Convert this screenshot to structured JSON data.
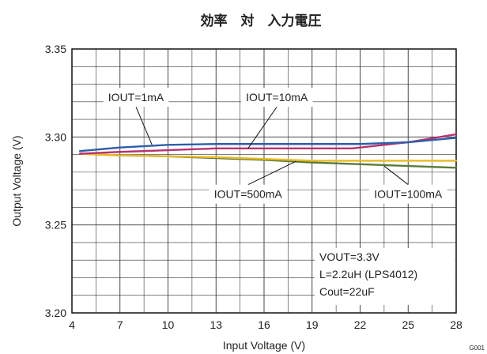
{
  "chart_data": {
    "type": "line",
    "title": "効率　対　入力電圧",
    "xlabel": "Input Voltage (V)",
    "ylabel": "Output Voltage (V)",
    "xlim": [
      4,
      28
    ],
    "ylim": [
      3.2,
      3.35
    ],
    "x_ticks": [
      "4",
      "7",
      "10",
      "13",
      "16",
      "19",
      "22",
      "25",
      "28"
    ],
    "y_ticks": [
      "3.20",
      "3.25",
      "3.30",
      "3.35"
    ],
    "grid": true,
    "series": [
      {
        "name": "IOUT=1mA",
        "color": "#2e5fa8",
        "x": [
          4.5,
          7,
          10,
          13,
          16,
          19,
          22,
          25,
          28
        ],
        "y": [
          3.292,
          3.294,
          3.2955,
          3.296,
          3.296,
          3.296,
          3.296,
          3.297,
          3.2995
        ]
      },
      {
        "name": "IOUT=10mA",
        "color": "#b8336f",
        "x": [
          4.5,
          7,
          10,
          13,
          16,
          19,
          21.5,
          22,
          25,
          28
        ],
        "y": [
          3.2905,
          3.2915,
          3.2925,
          3.2935,
          3.2935,
          3.2935,
          3.2935,
          3.294,
          3.297,
          3.3015
        ]
      },
      {
        "name": "IOUT=100mA",
        "color": "#e8b923",
        "x": [
          4.5,
          7,
          10,
          13,
          16,
          19,
          22,
          25,
          28
        ],
        "y": [
          3.2905,
          3.2895,
          3.289,
          3.2885,
          3.2875,
          3.2865,
          3.2865,
          3.2865,
          3.2865
        ]
      },
      {
        "name": "IOUT=500mA",
        "color": "#5a7a3a",
        "x": [
          4.5,
          7,
          10,
          13,
          16,
          19,
          22,
          25,
          28
        ],
        "y": [
          3.2905,
          3.2895,
          3.289,
          3.288,
          3.287,
          3.2855,
          3.2845,
          3.2835,
          3.2825
        ]
      }
    ],
    "annotations": [
      {
        "text": "IOUT=1mA",
        "series": 0,
        "box_x": 8.0,
        "box_y": 3.3225,
        "target_x": 9.0,
        "target_y": 3.2955
      },
      {
        "text": "IOUT=10mA",
        "series": 1,
        "box_x": 16.8,
        "box_y": 3.3225,
        "target_x": 15.0,
        "target_y": 3.2935
      },
      {
        "text": "IOUT=500mA",
        "series": 3,
        "box_x": 15.0,
        "box_y": 3.2675,
        "target_x": 18.0,
        "target_y": 3.2862
      },
      {
        "text": "IOUT=100mA",
        "series": 2,
        "box_x": 25.0,
        "box_y": 3.2675,
        "target_x": 23.5,
        "target_y": 3.2835
      }
    ],
    "conditions": [
      "VOUT=3.3V",
      "L=2.2uH (LPS4012)",
      "Cout=22uF"
    ],
    "figure_id": "G001"
  }
}
